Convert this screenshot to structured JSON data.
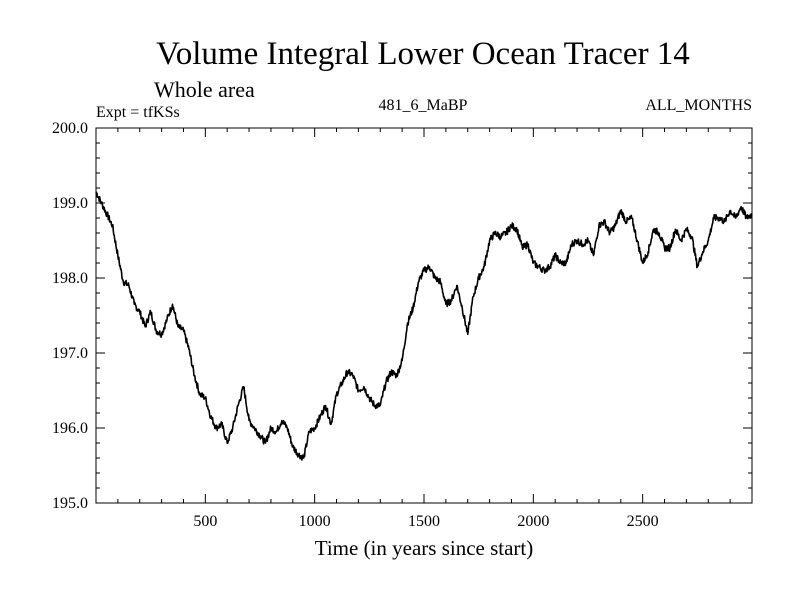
{
  "chart_data": {
    "type": "line",
    "title": "Volume Integral Lower Ocean Tracer 14",
    "subtitle": "Whole area",
    "annotations": {
      "left": "Expt = tfKSs",
      "center": "481_6_MaBP",
      "right": "ALL_MONTHS"
    },
    "xlabel": "Time (in years since start)",
    "ylabel": "",
    "xlim": [
      0,
      3000
    ],
    "ylim": [
      195.0,
      200.0
    ],
    "x_ticks": [
      500,
      1000,
      1500,
      2000,
      2500
    ],
    "x_tick_labels": [
      "500",
      "1000",
      "1500",
      "2000",
      "2500"
    ],
    "y_ticks": [
      195.0,
      196.0,
      197.0,
      198.0,
      199.0,
      200.0
    ],
    "y_tick_labels": [
      "195.0",
      "196.0",
      "197.0",
      "198.0",
      "199.0",
      "200.0"
    ],
    "grid": false,
    "series": [
      {
        "name": "Lower Ocean Tracer 14",
        "color": "#000000",
        "x": [
          0,
          25,
          50,
          75,
          100,
          125,
          150,
          175,
          200,
          225,
          250,
          275,
          300,
          325,
          350,
          375,
          400,
          425,
          450,
          475,
          500,
          525,
          550,
          575,
          600,
          625,
          650,
          675,
          700,
          725,
          750,
          775,
          800,
          825,
          850,
          875,
          900,
          925,
          950,
          975,
          1000,
          1025,
          1050,
          1075,
          1100,
          1125,
          1150,
          1175,
          1200,
          1225,
          1250,
          1275,
          1300,
          1325,
          1350,
          1375,
          1400,
          1425,
          1450,
          1475,
          1500,
          1525,
          1550,
          1575,
          1600,
          1625,
          1650,
          1675,
          1700,
          1725,
          1750,
          1775,
          1800,
          1825,
          1850,
          1875,
          1900,
          1925,
          1950,
          1975,
          2000,
          2025,
          2050,
          2075,
          2100,
          2125,
          2150,
          2175,
          2200,
          2225,
          2250,
          2275,
          2300,
          2325,
          2350,
          2375,
          2400,
          2425,
          2450,
          2475,
          2500,
          2525,
          2550,
          2575,
          2600,
          2625,
          2650,
          2675,
          2700,
          2725,
          2750,
          2775,
          2800,
          2825,
          2850,
          2875,
          2900,
          2925,
          2950,
          2975,
          3000
        ],
        "values": [
          199.15,
          199.0,
          198.85,
          198.7,
          198.3,
          197.95,
          197.9,
          197.65,
          197.55,
          197.35,
          197.55,
          197.3,
          197.25,
          197.45,
          197.65,
          197.35,
          197.3,
          197.05,
          196.7,
          196.45,
          196.4,
          196.15,
          196.0,
          196.05,
          195.8,
          196.0,
          196.3,
          196.55,
          196.1,
          196.0,
          195.9,
          195.8,
          196.0,
          195.95,
          196.1,
          196.0,
          195.75,
          195.65,
          195.6,
          195.95,
          196.0,
          196.15,
          196.3,
          196.05,
          196.45,
          196.6,
          196.75,
          196.7,
          196.5,
          196.55,
          196.4,
          196.3,
          196.3,
          196.6,
          196.75,
          196.7,
          196.9,
          197.4,
          197.6,
          197.95,
          198.1,
          198.15,
          198.0,
          197.95,
          197.65,
          197.7,
          197.9,
          197.6,
          197.25,
          197.75,
          198.0,
          198.15,
          198.5,
          198.6,
          198.55,
          198.6,
          198.7,
          198.65,
          198.4,
          198.45,
          198.2,
          198.15,
          198.1,
          198.15,
          198.3,
          198.2,
          198.2,
          198.45,
          198.5,
          198.45,
          198.5,
          198.3,
          198.7,
          198.75,
          198.6,
          198.7,
          198.9,
          198.75,
          198.8,
          198.5,
          198.2,
          198.35,
          198.65,
          198.6,
          198.4,
          198.4,
          198.65,
          198.5,
          198.65,
          198.55,
          198.15,
          198.35,
          198.5,
          198.8,
          198.8,
          198.75,
          198.9,
          198.8,
          198.95,
          198.8,
          198.85
        ]
      }
    ]
  }
}
